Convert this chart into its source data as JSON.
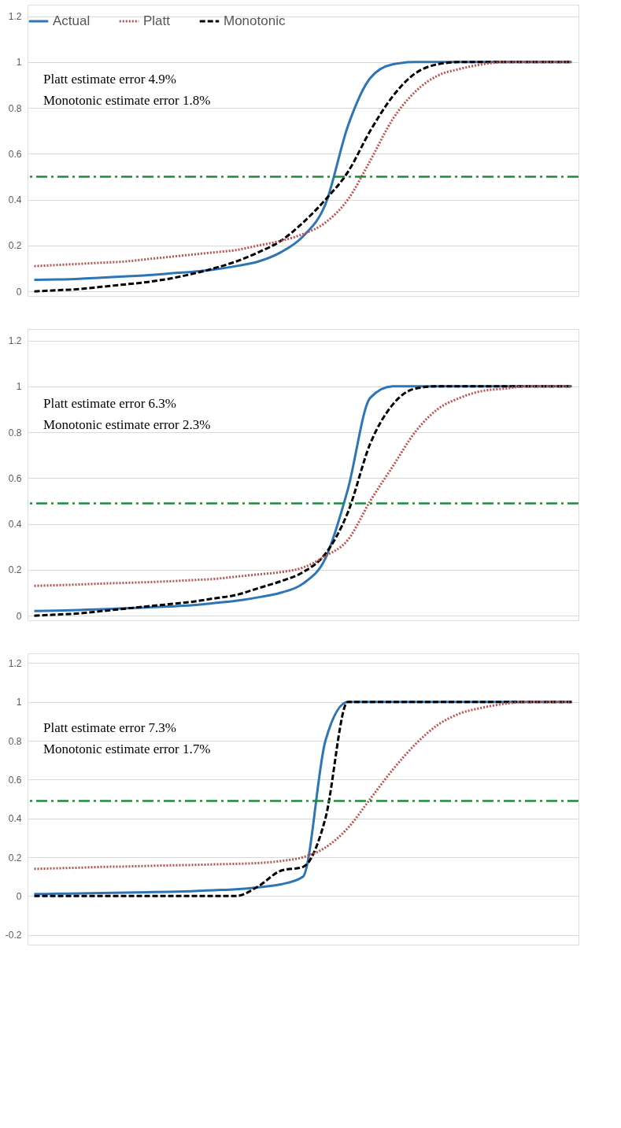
{
  "chart_data": [
    {
      "type": "line",
      "categories": [
        null,
        null,
        null,
        null,
        null,
        null,
        null,
        null,
        null,
        null,
        null,
        null,
        null,
        null,
        null,
        null,
        null,
        null,
        null,
        null,
        null,
        null,
        null,
        null,
        null
      ],
      "ylim": [
        -0.02,
        1.25
      ],
      "yticks": [
        0,
        0.2,
        0.4,
        0.6,
        0.8,
        1,
        1.2
      ],
      "grid": "y",
      "legend": "top",
      "tick_labels": "y",
      "annotations": [
        "Platt           estimate error 4.9%",
        "Monotonic estimate error 1.8%"
      ],
      "ref_lines": [
        {
          "axis": "y",
          "value": 0.5,
          "label": null,
          "color": "#1e8a3a",
          "line_style": "dashed"
        }
      ],
      "series": [
        {
          "name": "Actual",
          "color": "#2e75b6",
          "line_style": "solid",
          "values": [
            0.05,
            0.052,
            0.055,
            0.06,
            0.065,
            0.07,
            0.078,
            0.085,
            0.095,
            0.11,
            0.13,
            0.17,
            0.24,
            0.38,
            0.72,
            0.93,
            0.99,
            1,
            1,
            1,
            1,
            1,
            1,
            1,
            1
          ]
        },
        {
          "name": "Platt",
          "color": "#c0504d",
          "line_style": "dotted",
          "values": [
            0.11,
            0.115,
            0.12,
            0.125,
            0.13,
            0.14,
            0.15,
            0.16,
            0.17,
            0.18,
            0.2,
            0.22,
            0.25,
            0.3,
            0.4,
            0.57,
            0.75,
            0.87,
            0.94,
            0.97,
            0.99,
            1,
            1,
            1,
            1
          ]
        },
        {
          "name": "Monotonic",
          "color": "#000000",
          "line_style": "dashed",
          "values": [
            0,
            0.005,
            0.01,
            0.02,
            0.03,
            0.04,
            0.055,
            0.075,
            0.1,
            0.13,
            0.17,
            0.22,
            0.3,
            0.4,
            0.52,
            0.7,
            0.85,
            0.95,
            0.99,
            1,
            1,
            1,
            1,
            1,
            1
          ]
        }
      ]
    },
    {
      "type": "line",
      "categories": [
        null,
        null,
        null,
        null,
        null,
        null,
        null,
        null,
        null,
        null,
        null,
        null,
        null,
        null,
        null,
        null,
        null,
        null,
        null,
        null,
        null,
        null,
        null,
        null,
        null
      ],
      "ylim": [
        -0.02,
        1.25
      ],
      "yticks": [
        0,
        0.2,
        0.4,
        0.6,
        0.8,
        1,
        1.2
      ],
      "grid": "y",
      "legend": "top",
      "tick_labels": "y",
      "annotations": [
        "Platt           estimate error 6.3%",
        "Monotonic estimate error 2.3%"
      ],
      "ref_lines": [
        {
          "axis": "y",
          "value": 0.49,
          "label": null,
          "color": "#1e8a3a",
          "line_style": "dashed"
        }
      ],
      "series": [
        {
          "name": "Actual",
          "color": "#2e75b6",
          "line_style": "solid",
          "values": [
            0.02,
            0.022,
            0.025,
            0.028,
            0.032,
            0.036,
            0.04,
            0.045,
            0.055,
            0.065,
            0.08,
            0.1,
            0.14,
            0.25,
            0.55,
            0.95,
            1,
            1,
            1,
            1,
            1,
            1,
            1,
            1,
            1
          ]
        },
        {
          "name": "Platt",
          "color": "#c0504d",
          "line_style": "dotted",
          "values": [
            0.13,
            0.133,
            0.136,
            0.14,
            0.143,
            0.146,
            0.15,
            0.155,
            0.16,
            0.17,
            0.18,
            0.19,
            0.21,
            0.26,
            0.33,
            0.5,
            0.65,
            0.8,
            0.9,
            0.95,
            0.98,
            0.99,
            1,
            1,
            1
          ]
        },
        {
          "name": "Monotonic",
          "color": "#000000",
          "line_style": "dashed",
          "values": [
            0,
            0.005,
            0.01,
            0.02,
            0.03,
            0.04,
            0.05,
            0.06,
            0.075,
            0.09,
            0.12,
            0.15,
            0.19,
            0.27,
            0.45,
            0.75,
            0.92,
            0.99,
            1,
            1,
            1,
            1,
            1,
            1,
            1
          ]
        }
      ]
    },
    {
      "type": "line",
      "categories": [
        null,
        null,
        null,
        null,
        null,
        null,
        null,
        null,
        null,
        null,
        null,
        null,
        null,
        null,
        null,
        null,
        null,
        null,
        null,
        null,
        null,
        null,
        null,
        null,
        null
      ],
      "ylim": [
        -0.25,
        1.25
      ],
      "yticks": [
        -0.2,
        0,
        0.2,
        0.4,
        0.6,
        0.8,
        1,
        1.2
      ],
      "grid": "y",
      "legend": "top",
      "tick_labels": "y",
      "annotations": [
        "Platt           estimate error 7.3%",
        "Monotonic estimate error 1.7%"
      ],
      "ref_lines": [
        {
          "axis": "y",
          "value": 0.49,
          "label": null,
          "color": "#1e8a3a",
          "line_style": "dashed"
        }
      ],
      "series": [
        {
          "name": "Actual",
          "color": "#2e75b6",
          "line_style": "solid",
          "values": [
            0.01,
            0.012,
            0.014,
            0.016,
            0.018,
            0.02,
            0.022,
            0.025,
            0.03,
            0.035,
            0.045,
            0.06,
            0.1,
            0.8,
            1,
            1,
            1,
            1,
            1,
            1,
            1,
            1,
            1,
            1,
            1
          ]
        },
        {
          "name": "Platt",
          "color": "#c0504d",
          "line_style": "dotted",
          "values": [
            0.14,
            0.143,
            0.146,
            0.15,
            0.152,
            0.155,
            0.158,
            0.16,
            0.163,
            0.166,
            0.17,
            0.18,
            0.2,
            0.25,
            0.35,
            0.5,
            0.65,
            0.78,
            0.88,
            0.94,
            0.97,
            0.99,
            1,
            1,
            1
          ]
        },
        {
          "name": "Monotonic",
          "color": "#000000",
          "line_style": "dashed",
          "values": [
            0,
            0,
            0,
            0,
            0,
            0,
            0,
            0,
            0,
            0,
            0.05,
            0.13,
            0.15,
            0.4,
            1,
            1,
            1,
            1,
            1,
            1,
            1,
            1,
            1,
            1,
            1
          ]
        }
      ]
    }
  ]
}
